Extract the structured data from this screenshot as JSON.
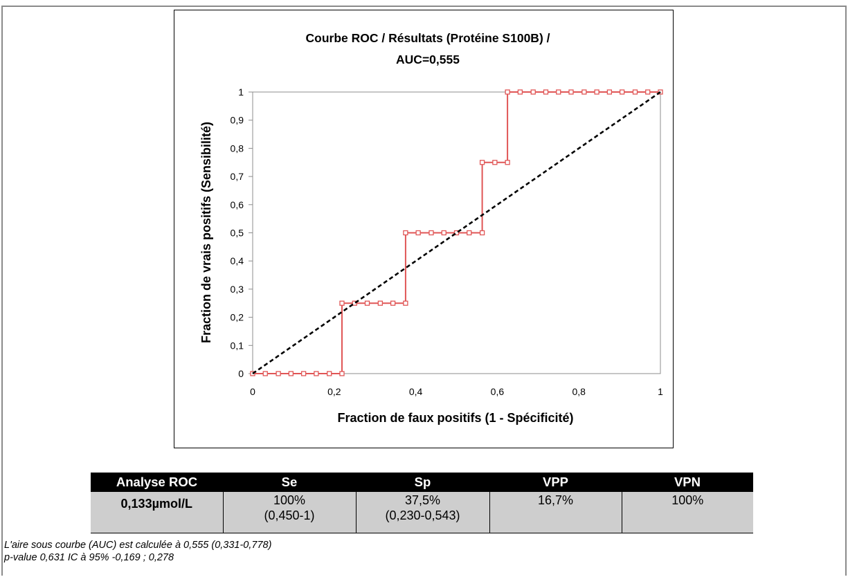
{
  "chart_data": {
    "type": "line",
    "title_lines": [
      "Courbe ROC / Résultats (Protéine S100B) /",
      "AUC=0,555"
    ],
    "xlabel": "Fraction de faux positifs (1 - Spécificité)",
    "ylabel": "Fraction de vrais positifs (Sensibilité)",
    "xlim": [
      0,
      1
    ],
    "ylim": [
      0,
      1
    ],
    "x_ticks": [
      0,
      0.2,
      0.4,
      0.6,
      0.8,
      1
    ],
    "x_tick_labels": [
      "0",
      "0,2",
      "0,4",
      "0,6",
      "0,8",
      "1"
    ],
    "y_ticks": [
      0,
      0.1,
      0.2,
      0.3,
      0.4,
      0.5,
      0.6,
      0.7,
      0.8,
      0.9,
      1
    ],
    "y_tick_labels": [
      "0",
      "0,1",
      "0,2",
      "0,3",
      "0,4",
      "0,5",
      "0,6",
      "0,7",
      "0,8",
      "0,9",
      "1"
    ],
    "grid": false,
    "series": [
      {
        "style": "step",
        "color": "#e05555",
        "marker": "square",
        "x": [
          0,
          0.031,
          0.063,
          0.094,
          0.125,
          0.156,
          0.188,
          0.219,
          0.219,
          0.25,
          0.281,
          0.313,
          0.344,
          0.375,
          0.375,
          0.406,
          0.438,
          0.469,
          0.5,
          0.531,
          0.563,
          0.563,
          0.594,
          0.625,
          0.625,
          0.656,
          0.688,
          0.719,
          0.75,
          0.781,
          0.813,
          0.844,
          0.875,
          0.906,
          0.938,
          0.969,
          1
        ],
        "y": [
          0,
          0,
          0,
          0,
          0,
          0,
          0,
          0,
          0.25,
          0.25,
          0.25,
          0.25,
          0.25,
          0.25,
          0.5,
          0.5,
          0.5,
          0.5,
          0.5,
          0.5,
          0.5,
          0.75,
          0.75,
          0.75,
          1,
          1,
          1,
          1,
          1,
          1,
          1,
          1,
          1,
          1,
          1,
          1,
          1
        ]
      },
      {
        "style": "dashed",
        "color": "#000000",
        "x": [
          0,
          1
        ],
        "y": [
          0,
          1
        ]
      }
    ]
  },
  "table": {
    "headers": [
      "Analyse ROC",
      "Se",
      "Sp",
      "VPP",
      "VPN"
    ],
    "cells": [
      [
        "0,133µmol/L"
      ],
      [
        "100%",
        "(0,450-1)"
      ],
      [
        "37,5%",
        "(0,230-0,543)"
      ],
      [
        "16,7%"
      ],
      [
        "100%"
      ]
    ]
  },
  "notes": {
    "line1": "L'aire sous courbe (AUC) est calculée à 0,555 (0,331-0,778)",
    "line2": "p-value 0,631 IC à 95% -0,169 ; 0,278"
  }
}
